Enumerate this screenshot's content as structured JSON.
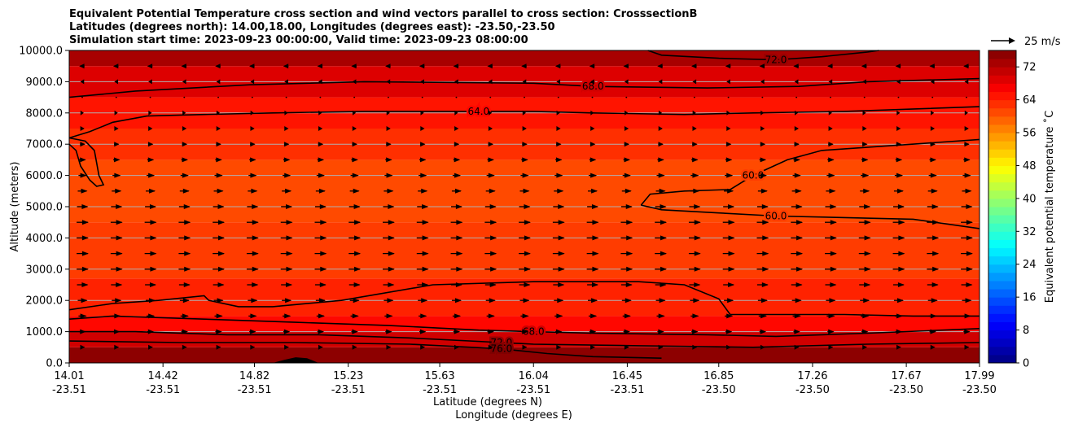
{
  "chart_data": {
    "type": "heatmap",
    "title_lines": [
      "Equivalent Potential Temperature cross section and wind vectors parallel to cross section: CrosssectionB",
      "Latitudes (degrees north): 14.00,18.00, Longitudes (degrees east): -23.50,-23.50",
      "Simulation start time: 2023-09-23 00:00:00, Valid time: 2023-09-23 08:00:00"
    ],
    "ylabel": "Altitude (meters)",
    "xlabel_line1": "Latitude (degrees N)",
    "xlabel_line2": "Longitude (degrees E)",
    "ylim": [
      0,
      10000
    ],
    "y_ticks": [
      0,
      1000,
      2000,
      3000,
      4000,
      5000,
      6000,
      7000,
      8000,
      9000,
      10000
    ],
    "y_tick_labels": [
      "0.0",
      "1000.0",
      "2000.0",
      "3000.0",
      "4000.0",
      "5000.0",
      "6000.0",
      "7000.0",
      "8000.0",
      "9000.0",
      "10000.0"
    ],
    "xlim": [
      14.01,
      17.99
    ],
    "x_ticks": [
      {
        "lat": "14.01",
        "lon": "-23.51",
        "value": 14.01
      },
      {
        "lat": "14.42",
        "lon": "-23.51",
        "value": 14.42
      },
      {
        "lat": "14.82",
        "lon": "-23.51",
        "value": 14.82
      },
      {
        "lat": "15.23",
        "lon": "-23.51",
        "value": 15.23
      },
      {
        "lat": "15.63",
        "lon": "-23.51",
        "value": 15.63
      },
      {
        "lat": "16.04",
        "lon": "-23.51",
        "value": 16.04
      },
      {
        "lat": "16.45",
        "lon": "-23.51",
        "value": 16.45
      },
      {
        "lat": "16.85",
        "lon": "-23.50",
        "value": 16.85
      },
      {
        "lat": "17.26",
        "lon": "-23.50",
        "value": 17.26
      },
      {
        "lat": "17.67",
        "lon": "-23.50",
        "value": 17.67
      },
      {
        "lat": "17.99",
        "lon": "-23.50",
        "value": 17.99
      }
    ],
    "grid": "horizontal",
    "colorbar": {
      "label": "Equivalent potential temperature ˚C",
      "min": 0,
      "max": 76,
      "step": 2,
      "ticks": [
        0,
        8,
        16,
        24,
        32,
        40,
        48,
        56,
        64,
        72
      ],
      "colormap": "jet"
    },
    "quiver_key": {
      "label": "25 m/s",
      "speed": 25
    },
    "temperature_layers": [
      {
        "z": [
          0,
          500
        ],
        "value": 75
      },
      {
        "z": [
          500,
          1000
        ],
        "value": 70
      },
      {
        "z": [
          1000,
          1500
        ],
        "value": 66
      },
      {
        "z": [
          1500,
          2700
        ],
        "value": 64
      },
      {
        "z": [
          2700,
          4500
        ],
        "value": 62
      },
      {
        "z": [
          4500,
          6500
        ],
        "value": 61
      },
      {
        "z": [
          6500,
          7500
        ],
        "value": 63
      },
      {
        "z": [
          7500,
          8500
        ],
        "value": 65
      },
      {
        "z": [
          8500,
          9500
        ],
        "value": 69
      },
      {
        "z": [
          9500,
          10000
        ],
        "value": 73
      }
    ],
    "contours": [
      {
        "level": 60,
        "label": "60.0",
        "points": [
          [
            16.51,
            5050
          ],
          [
            16.55,
            5400
          ],
          [
            16.7,
            5500
          ],
          [
            16.9,
            5550
          ],
          [
            17.0,
            6000
          ],
          [
            17.15,
            6500
          ],
          [
            17.3,
            6800
          ],
          [
            17.6,
            6950
          ],
          [
            17.99,
            7150
          ]
        ]
      },
      {
        "level": 60,
        "label": "60.0",
        "points": [
          [
            16.51,
            5050
          ],
          [
            16.6,
            4900
          ],
          [
            16.85,
            4800
          ],
          [
            17.1,
            4700
          ],
          [
            17.4,
            4650
          ],
          [
            17.7,
            4600
          ],
          [
            17.99,
            4300
          ]
        ]
      },
      {
        "level": 64,
        "label": "64.0",
        "points": [
          [
            14.01,
            7200
          ],
          [
            14.1,
            7400
          ],
          [
            14.2,
            7700
          ],
          [
            14.35,
            7900
          ],
          [
            14.6,
            7950
          ],
          [
            14.9,
            8000
          ],
          [
            15.3,
            8050
          ],
          [
            15.8,
            8050
          ],
          [
            16.04,
            8050
          ],
          [
            16.3,
            8000
          ],
          [
            16.7,
            7950
          ],
          [
            17.0,
            8000
          ],
          [
            17.4,
            8050
          ],
          [
            17.99,
            8200
          ]
        ]
      },
      {
        "level": 64,
        "label": "",
        "points": [
          [
            14.01,
            7200
          ],
          [
            14.08,
            7100
          ],
          [
            14.12,
            6800
          ],
          [
            14.13,
            6400
          ],
          [
            14.14,
            6000
          ],
          [
            14.16,
            5700
          ],
          [
            14.13,
            5650
          ],
          [
            14.1,
            5850
          ],
          [
            14.06,
            6300
          ],
          [
            14.04,
            6800
          ],
          [
            14.01,
            7000
          ]
        ]
      },
      {
        "level": 64,
        "label": "",
        "points": [
          [
            14.01,
            1700
          ],
          [
            14.2,
            1900
          ],
          [
            14.4,
            2000
          ],
          [
            14.6,
            2150
          ],
          [
            14.62,
            2000
          ],
          [
            14.75,
            1800
          ],
          [
            14.9,
            1800
          ],
          [
            15.2,
            2000
          ],
          [
            15.6,
            2500
          ],
          [
            16.04,
            2600
          ],
          [
            16.5,
            2600
          ],
          [
            16.7,
            2500
          ],
          [
            16.85,
            2050
          ],
          [
            16.9,
            1550
          ]
        ]
      },
      {
        "level": 64,
        "label": "",
        "points": [
          [
            16.9,
            1550
          ],
          [
            17.1,
            1550
          ],
          [
            17.4,
            1550
          ],
          [
            17.7,
            1500
          ],
          [
            17.99,
            1500
          ]
        ]
      },
      {
        "level": 68,
        "label": "68.0",
        "points": [
          [
            14.01,
            8500
          ],
          [
            14.3,
            8700
          ],
          [
            14.8,
            8900
          ],
          [
            15.3,
            9000
          ],
          [
            16.04,
            8950
          ],
          [
            16.3,
            8850
          ],
          [
            16.8,
            8800
          ],
          [
            17.2,
            8850
          ],
          [
            17.5,
            9000
          ],
          [
            17.99,
            9100
          ]
        ]
      },
      {
        "level": 68,
        "label": "68.0",
        "points": [
          [
            14.01,
            1400
          ],
          [
            14.2,
            1500
          ],
          [
            14.6,
            1400
          ],
          [
            15.0,
            1300
          ],
          [
            15.4,
            1200
          ],
          [
            15.8,
            1050
          ],
          [
            16.04,
            1000
          ],
          [
            16.3,
            950
          ],
          [
            16.8,
            900
          ],
          [
            17.1,
            850
          ],
          [
            17.5,
            950
          ],
          [
            17.99,
            1100
          ]
        ]
      },
      {
        "level": 72,
        "label": "72.0",
        "points": [
          [
            14.01,
            1000
          ],
          [
            14.3,
            1000
          ],
          [
            14.7,
            900
          ],
          [
            15.1,
            900
          ],
          [
            15.5,
            800
          ],
          [
            15.9,
            650
          ],
          [
            16.04,
            600
          ],
          [
            16.5,
            550
          ],
          [
            17.0,
            500
          ],
          [
            17.5,
            600
          ],
          [
            17.99,
            650
          ]
        ]
      },
      {
        "level": 72,
        "label": "72.0",
        "points": [
          [
            16.54,
            10000
          ],
          [
            16.6,
            9850
          ],
          [
            16.85,
            9750
          ],
          [
            17.1,
            9700
          ],
          [
            17.3,
            9800
          ],
          [
            17.5,
            9950
          ],
          [
            17.55,
            10000
          ]
        ]
      },
      {
        "level": 76,
        "label": "76.0",
        "points": [
          [
            14.01,
            700
          ],
          [
            14.5,
            650
          ],
          [
            15.0,
            650
          ],
          [
            15.5,
            600
          ],
          [
            15.9,
            450
          ],
          [
            16.1,
            300
          ],
          [
            16.3,
            200
          ],
          [
            16.6,
            150
          ]
        ]
      }
    ],
    "terrain": [
      [
        14.01,
        0
      ],
      [
        14.9,
        0
      ],
      [
        14.95,
        100
      ],
      [
        15.0,
        180
      ],
      [
        15.05,
        150
      ],
      [
        15.1,
        0
      ],
      [
        17.99,
        0
      ]
    ],
    "wind_rows": [
      {
        "z": 500,
        "u": 5
      },
      {
        "z": 1000,
        "u": 8
      },
      {
        "z": 1500,
        "u": 10
      },
      {
        "z": 2000,
        "u": 12
      },
      {
        "z": 2500,
        "u": 14
      },
      {
        "z": 3000,
        "u": 15
      },
      {
        "z": 3500,
        "u": 15
      },
      {
        "z": 4000,
        "u": 15
      },
      {
        "z": 4500,
        "u": 15
      },
      {
        "z": 5000,
        "u": 14
      },
      {
        "z": 5500,
        "u": 12
      },
      {
        "z": 6000,
        "u": 10
      },
      {
        "z": 6500,
        "u": 8
      },
      {
        "z": 7000,
        "u": 6
      },
      {
        "z": 7500,
        "u": 4
      },
      {
        "z": 8000,
        "u": 2
      },
      {
        "z": 8500,
        "u": 0
      },
      {
        "z": 9000,
        "u": -3
      },
      {
        "z": 9500,
        "u": -6
      }
    ]
  }
}
